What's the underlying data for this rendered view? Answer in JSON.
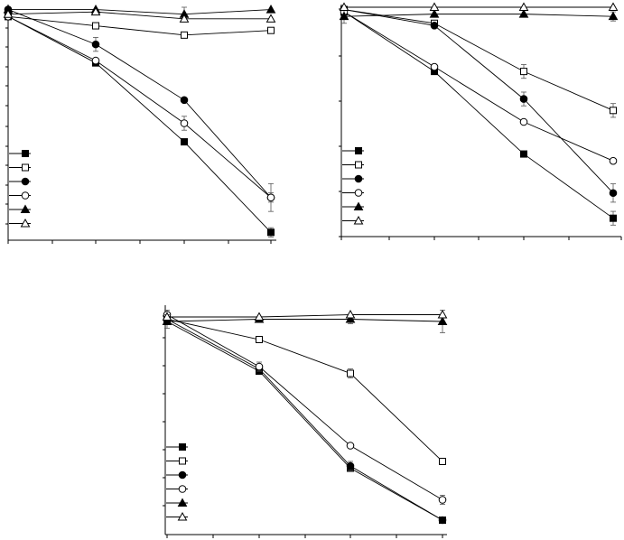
{
  "chart_data": [
    {
      "type": "line",
      "title": "",
      "xlabel": "",
      "ylabel": "",
      "x": [
        0,
        1,
        2,
        3
      ],
      "ylim": [
        0,
        100
      ],
      "grid": false,
      "legend": "bottom-left",
      "series": [
        {
          "marker": "square",
          "fill": "filled",
          "values": [
            96,
            76,
            42,
            3
          ],
          "err": [
            1,
            1,
            1,
            2
          ]
        },
        {
          "marker": "square",
          "fill": "open",
          "values": [
            96,
            92,
            88,
            90
          ],
          "err": [
            1,
            1,
            1,
            1
          ]
        },
        {
          "marker": "circle",
          "fill": "filled",
          "values": [
            99,
            84,
            60,
            18
          ],
          "err": [
            1,
            3,
            1,
            2
          ]
        },
        {
          "marker": "circle",
          "fill": "open",
          "values": [
            96,
            77,
            50,
            18
          ],
          "err": [
            1,
            1,
            3,
            6
          ]
        },
        {
          "marker": "triangle",
          "fill": "filled",
          "values": [
            99,
            99,
            97,
            99
          ],
          "err": [
            1,
            1,
            3,
            1
          ]
        },
        {
          "marker": "triangle",
          "fill": "open",
          "values": [
            97,
            98,
            95,
            95
          ],
          "err": [
            1,
            1,
            1,
            1
          ]
        }
      ]
    },
    {
      "type": "line",
      "title": "",
      "xlabel": "",
      "ylabel": "",
      "x": [
        0,
        1,
        2,
        3
      ],
      "ylim": [
        0,
        100
      ],
      "grid": false,
      "legend": "bottom-left",
      "series": [
        {
          "marker": "square",
          "fill": "filled",
          "values": [
            98,
            72,
            36,
            8
          ],
          "err": [
            1,
            1,
            1,
            3
          ]
        },
        {
          "marker": "square",
          "fill": "open",
          "values": [
            99,
            93,
            72,
            55
          ],
          "err": [
            1,
            1,
            3,
            3
          ]
        },
        {
          "marker": "circle",
          "fill": "filled",
          "values": [
            99,
            92,
            60,
            19
          ],
          "err": [
            1,
            1,
            3,
            4
          ]
        },
        {
          "marker": "circle",
          "fill": "open",
          "values": [
            98,
            74,
            50,
            33
          ],
          "err": [
            1,
            1,
            1,
            1
          ]
        },
        {
          "marker": "triangle",
          "fill": "filled",
          "values": [
            96,
            97,
            97,
            96
          ],
          "err": [
            3,
            1,
            1,
            2
          ]
        },
        {
          "marker": "triangle",
          "fill": "open",
          "values": [
            100,
            100,
            100,
            100
          ],
          "err": [
            1,
            1,
            1,
            1
          ]
        }
      ]
    },
    {
      "type": "line",
      "title": "",
      "xlabel": "",
      "ylabel": "",
      "x": [
        0,
        1,
        2,
        3
      ],
      "ylim": [
        0,
        100
      ],
      "grid": false,
      "legend": "bottom-left",
      "series": [
        {
          "marker": "square",
          "fill": "filled",
          "values": [
            94,
            72,
            29,
            6
          ],
          "err": [
            1,
            1,
            1,
            1
          ]
        },
        {
          "marker": "square",
          "fill": "open",
          "values": [
            95,
            86,
            71,
            32
          ],
          "err": [
            1,
            1,
            2,
            1
          ]
        },
        {
          "marker": "circle",
          "fill": "filled",
          "values": [
            95,
            73,
            30,
            6
          ],
          "err": [
            1,
            1,
            2,
            1
          ]
        },
        {
          "marker": "circle",
          "fill": "open",
          "values": [
            97,
            74,
            39,
            15
          ],
          "err": [
            2,
            2,
            1,
            2
          ]
        },
        {
          "marker": "triangle",
          "fill": "filled",
          "values": [
            94,
            95,
            95,
            94
          ],
          "err": [
            3,
            1,
            2,
            5
          ]
        },
        {
          "marker": "triangle",
          "fill": "open",
          "values": [
            96,
            96,
            97,
            97
          ],
          "err": [
            1,
            1,
            1,
            1
          ]
        }
      ]
    }
  ]
}
